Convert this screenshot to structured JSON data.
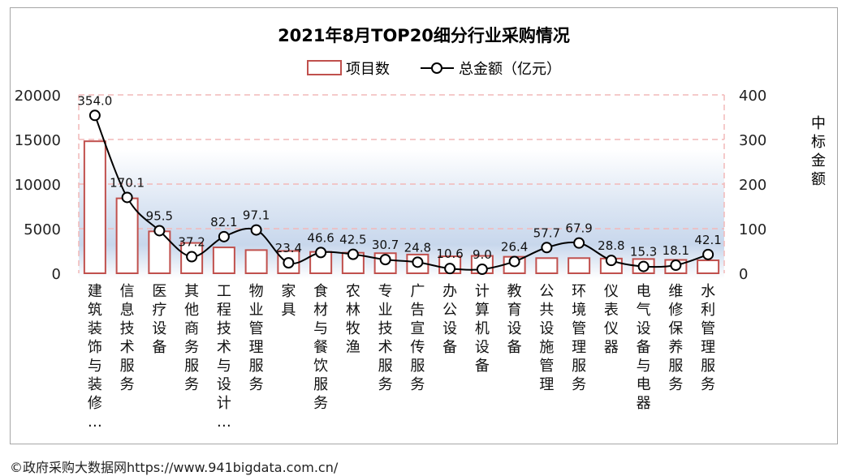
{
  "footer": "©政府采购大数据网https://www.941bigdata.com.cn/",
  "chart_data": {
    "type": "bar",
    "title": "2021年8月TOP20细分行业采购情况",
    "legend": {
      "placement": "top-center",
      "bar_label": "项目数",
      "line_label": "总金额（亿元）"
    },
    "categories": [
      "建筑装饰与装修…",
      "信息技术服务",
      "医疗设备",
      "其他商务服务",
      "工程技术与设计…",
      "物业管理服务",
      "家具",
      "食材与餐饮服务",
      "农林牧渔",
      "专业技术服务",
      "广告宣传服务",
      "办公设备",
      "计算机设备",
      "教育设备",
      "公共设施管理",
      "环境管理服务",
      "仪表仪器",
      "电气设备与电器",
      "维修保养服务",
      "水利管理服务"
    ],
    "series": [
      {
        "name": "项目数",
        "type": "bar",
        "axis": "left",
        "values": [
          14800,
          8400,
          4700,
          3400,
          2900,
          2600,
          2500,
          2400,
          2300,
          2250,
          2100,
          1900,
          1950,
          1850,
          1700,
          1700,
          1650,
          1600,
          1500,
          1450
        ]
      },
      {
        "name": "总金额（亿元）",
        "type": "line",
        "axis": "right",
        "values": [
          354.0,
          170.1,
          95.5,
          37.2,
          82.1,
          97.1,
          23.4,
          46.6,
          42.5,
          30.7,
          24.8,
          10.6,
          9.0,
          26.4,
          57.7,
          67.9,
          28.8,
          15.3,
          18.1,
          42.1
        ]
      }
    ],
    "y_left": {
      "min": 0,
      "max": 20000,
      "ticks": [
        "0",
        "5000",
        "10000",
        "15000",
        "20000"
      ]
    },
    "y_right": {
      "min": 0,
      "max": 400,
      "ticks": [
        "0",
        "100",
        "200",
        "300",
        "400"
      ],
      "label": "中标金额"
    },
    "grid": true,
    "colors": {
      "bar_edge": "#c0504d",
      "bar_fill": "#ffffff",
      "line": "#000000",
      "grid": "#f2b8b8"
    }
  }
}
